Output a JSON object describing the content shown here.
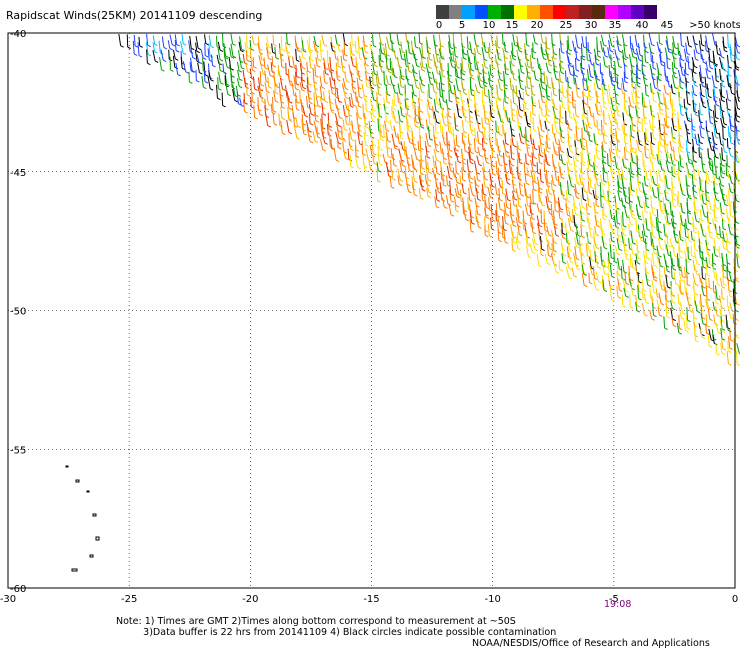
{
  "title": "Rapidscat Winds(25KM) 20141109 descending",
  "colorbar": {
    "labels": [
      "0",
      "5",
      "10",
      "15",
      "20",
      "25",
      "30",
      "35",
      "40",
      "45",
      ">50 knots"
    ],
    "colors": [
      "#404040",
      "#808080",
      "#00a0ff",
      "#0050ff",
      "#00b000",
      "#007000",
      "#ffff00",
      "#ffb000",
      "#ff5000",
      "#ff0000",
      "#c02020",
      "#802020",
      "#5a2a10",
      "#ff00ff",
      "#b000ff",
      "#6000c0",
      "#3a006a"
    ]
  },
  "axes": {
    "lon_ticks": [
      "-30",
      "-25",
      "-20",
      "-15",
      "-10",
      "-5",
      "0"
    ],
    "lat_ticks": [
      "-40",
      "-45",
      "-50",
      "-55",
      "-60"
    ]
  },
  "timestamp": "19:08",
  "notes": "Note: 1) Times are GMT 2)Times along bottom correspond to measurement at ~50S\n         3)Data buffer is 22 hrs from 20141109 4) Black circles indicate possible contamination",
  "credit": "NOAA/NESDIS/Office of Research and Applications",
  "swath": {
    "lon_range": [
      -26,
      0
    ],
    "lat_range": [
      -40,
      -52.5
    ]
  },
  "palette": {
    "black": "#000000",
    "blue": "#2040ff",
    "cyan": "#00c0ff",
    "green": "#00a000",
    "olive": "#b0b000",
    "yellow": "#ffe000",
    "gold": "#ffb000",
    "orange": "#ff7a00",
    "red": "#e03000"
  }
}
